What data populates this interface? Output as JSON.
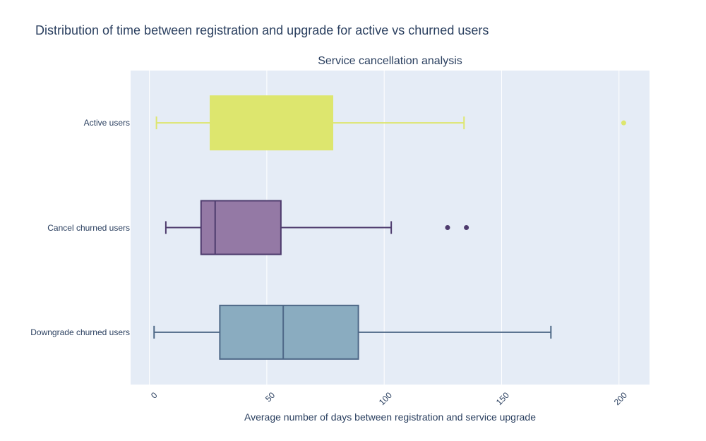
{
  "title": "Distribution of time between registration and upgrade for active vs churned users",
  "chart_data": {
    "type": "box",
    "orientation": "horizontal",
    "title": "Service cancellation analysis",
    "xlabel": "Average number of days between registration and service upgrade",
    "ylabel": "",
    "xlim": [
      -8,
      213
    ],
    "xticks": [
      0,
      50,
      100,
      150,
      200
    ],
    "grid": true,
    "legend": "none",
    "categories": [
      "Active users",
      "Cancel churned users",
      "Downgrade churned users"
    ],
    "series": [
      {
        "category": "Active users",
        "color": "#dde66e",
        "min": 3,
        "q1": 26,
        "median": 26,
        "q3": 78,
        "max": 134,
        "outliers": [
          202
        ]
      },
      {
        "category": "Cancel churned users",
        "color": "#4e3b6d",
        "fill": "#9479a5",
        "min": 7,
        "q1": 22,
        "median": 28,
        "q3": 56,
        "max": 103,
        "outliers": [
          127,
          135
        ]
      },
      {
        "category": "Downgrade churned users",
        "color": "#4e6887",
        "fill": "#8aacc0",
        "min": 2,
        "q1": 30,
        "median": 57,
        "q3": 89,
        "max": 171,
        "outliers": []
      }
    ]
  }
}
